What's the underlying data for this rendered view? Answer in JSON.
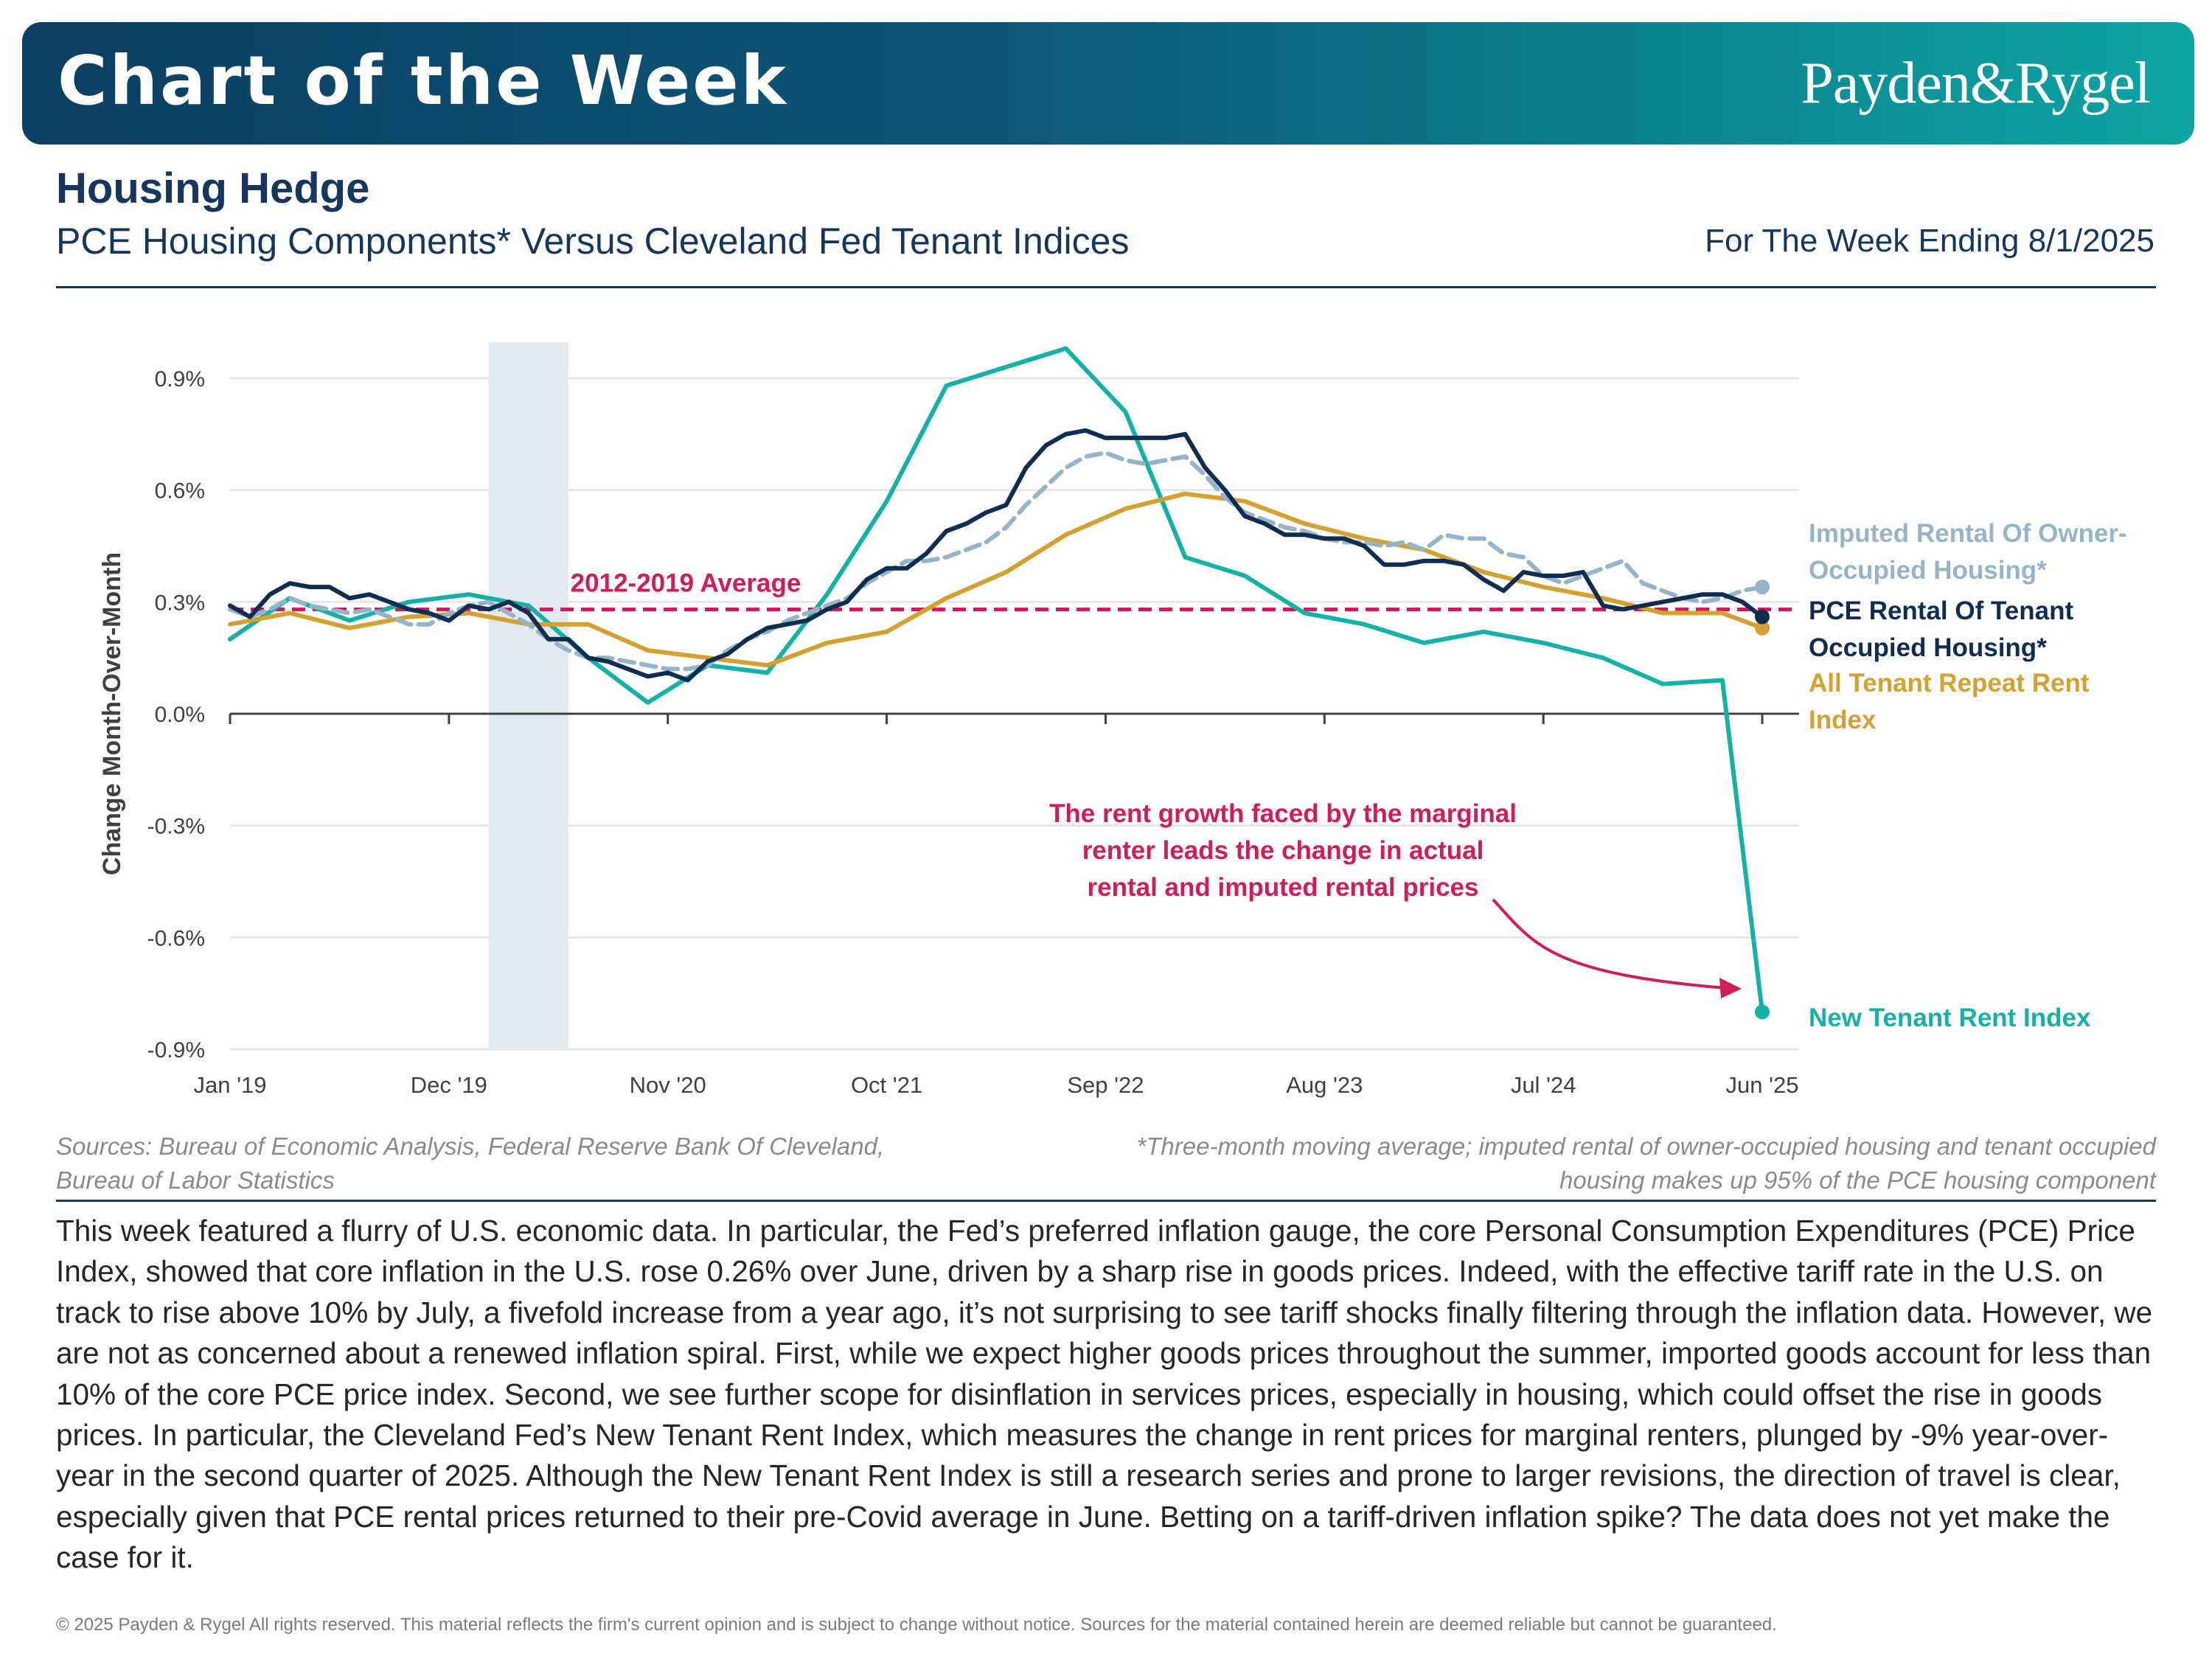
{
  "header": {
    "banner_title": "Chart of the Week",
    "brand": "Payden&Rygel",
    "headline": "Housing Hedge",
    "subtitle": "PCE Housing Components* Versus Cleveland Fed Tenant Indices",
    "week": "For The Week Ending 8/1/2025"
  },
  "colors": {
    "banner_dark": "#0c3f63",
    "banner_light": "#0ea5a3",
    "pce_tenant": "#0f2d52",
    "imputed_owner": "#96b4c8",
    "all_tenant": "#d4a030",
    "new_tenant": "#14b2a6",
    "average": "#d01c5b",
    "recession_shade": "#e1eaf0"
  },
  "chart_data": {
    "type": "line",
    "ylabel": "Change Month-Over-Month",
    "xlabel": "",
    "ylim": [
      -0.9,
      0.9
    ],
    "yticks": [
      0.9,
      0.6,
      0.3,
      0.0,
      -0.3,
      -0.6,
      -0.9
    ],
    "ytick_labels": [
      "0.9%",
      "0.6%",
      "0.3%",
      "0.0%",
      "-0.3%",
      "-0.6%",
      "-0.9%"
    ],
    "xticks": [
      "2019-01",
      "2019-12",
      "2020-11",
      "2021-10",
      "2022-09",
      "2023-08",
      "2024-07",
      "2025-06"
    ],
    "xtick_labels": [
      "Jan '19",
      "Dec '19",
      "Nov '20",
      "Oct '21",
      "Sep '22",
      "Aug '23",
      "Jul '24",
      "Jun '25"
    ],
    "shaded_period": [
      "2020-02",
      "2020-06"
    ],
    "grid": "horizontal",
    "reference_line": {
      "label": "2012-2019 Average",
      "value": 0.28
    },
    "annotation": "The rent growth faced by the marginal renter leads the change in actual rental and imputed rental prices",
    "series": [
      {
        "name": "Imputed Rental Of Owner-Occupied Housing*",
        "name_lines": [
          "Imputed Rental Of Owner-",
          "Occupied Housing*"
        ],
        "style": "dashed",
        "color": "#96b4c8",
        "points": [
          [
            "2019-01",
            0.28
          ],
          [
            "2019-02",
            0.26
          ],
          [
            "2019-03",
            0.28
          ],
          [
            "2019-04",
            0.31
          ],
          [
            "2019-05",
            0.29
          ],
          [
            "2019-06",
            0.28
          ],
          [
            "2019-07",
            0.27
          ],
          [
            "2019-08",
            0.28
          ],
          [
            "2019-09",
            0.26
          ],
          [
            "2019-10",
            0.24
          ],
          [
            "2019-11",
            0.24
          ],
          [
            "2019-12",
            0.27
          ],
          [
            "2020-01",
            0.29
          ],
          [
            "2020-02",
            0.3
          ],
          [
            "2020-03",
            0.27
          ],
          [
            "2020-04",
            0.24
          ],
          [
            "2020-05",
            0.2
          ],
          [
            "2020-06",
            0.17
          ],
          [
            "2020-07",
            0.15
          ],
          [
            "2020-08",
            0.15
          ],
          [
            "2020-09",
            0.14
          ],
          [
            "2020-10",
            0.13
          ],
          [
            "2020-11",
            0.12
          ],
          [
            "2020-12",
            0.12
          ],
          [
            "2021-01",
            0.13
          ],
          [
            "2021-02",
            0.17
          ],
          [
            "2021-03",
            0.2
          ],
          [
            "2021-04",
            0.22
          ],
          [
            "2021-05",
            0.25
          ],
          [
            "2021-06",
            0.27
          ],
          [
            "2021-07",
            0.29
          ],
          [
            "2021-08",
            0.31
          ],
          [
            "2021-09",
            0.35
          ],
          [
            "2021-10",
            0.38
          ],
          [
            "2021-11",
            0.41
          ],
          [
            "2021-12",
            0.41
          ],
          [
            "2022-01",
            0.42
          ],
          [
            "2022-02",
            0.44
          ],
          [
            "2022-03",
            0.46
          ],
          [
            "2022-04",
            0.5
          ],
          [
            "2022-05",
            0.56
          ],
          [
            "2022-06",
            0.61
          ],
          [
            "2022-07",
            0.66
          ],
          [
            "2022-08",
            0.69
          ],
          [
            "2022-09",
            0.7
          ],
          [
            "2022-10",
            0.68
          ],
          [
            "2022-11",
            0.67
          ],
          [
            "2022-12",
            0.68
          ],
          [
            "2023-01",
            0.69
          ],
          [
            "2023-02",
            0.64
          ],
          [
            "2023-03",
            0.58
          ],
          [
            "2023-04",
            0.54
          ],
          [
            "2023-05",
            0.52
          ],
          [
            "2023-06",
            0.5
          ],
          [
            "2023-07",
            0.49
          ],
          [
            "2023-08",
            0.47
          ],
          [
            "2023-09",
            0.46
          ],
          [
            "2023-10",
            0.46
          ],
          [
            "2023-11",
            0.45
          ],
          [
            "2023-12",
            0.46
          ],
          [
            "2024-01",
            0.44
          ],
          [
            "2024-02",
            0.48
          ],
          [
            "2024-03",
            0.47
          ],
          [
            "2024-04",
            0.47
          ],
          [
            "2024-05",
            0.43
          ],
          [
            "2024-06",
            0.42
          ],
          [
            "2024-07",
            0.37
          ],
          [
            "2024-08",
            0.35
          ],
          [
            "2024-09",
            0.37
          ],
          [
            "2024-10",
            0.39
          ],
          [
            "2024-11",
            0.41
          ],
          [
            "2024-12",
            0.35
          ],
          [
            "2025-01",
            0.33
          ],
          [
            "2025-02",
            0.31
          ],
          [
            "2025-03",
            0.3
          ],
          [
            "2025-04",
            0.31
          ],
          [
            "2025-05",
            0.33
          ],
          [
            "2025-06",
            0.34
          ]
        ]
      },
      {
        "name": "PCE Rental Of Tenant Occupied Housing*",
        "name_lines": [
          "PCE Rental Of Tenant",
          "Occupied Housing*"
        ],
        "style": "solid",
        "color": "#0f2d52",
        "points": [
          [
            "2019-01",
            0.29
          ],
          [
            "2019-02",
            0.26
          ],
          [
            "2019-03",
            0.32
          ],
          [
            "2019-04",
            0.35
          ],
          [
            "2019-05",
            0.34
          ],
          [
            "2019-06",
            0.34
          ],
          [
            "2019-07",
            0.31
          ],
          [
            "2019-08",
            0.32
          ],
          [
            "2019-09",
            0.3
          ],
          [
            "2019-10",
            0.28
          ],
          [
            "2019-11",
            0.27
          ],
          [
            "2019-12",
            0.25
          ],
          [
            "2020-01",
            0.29
          ],
          [
            "2020-02",
            0.28
          ],
          [
            "2020-03",
            0.3
          ],
          [
            "2020-04",
            0.27
          ],
          [
            "2020-05",
            0.2
          ],
          [
            "2020-06",
            0.2
          ],
          [
            "2020-07",
            0.15
          ],
          [
            "2020-08",
            0.14
          ],
          [
            "2020-09",
            0.12
          ],
          [
            "2020-10",
            0.1
          ],
          [
            "2020-11",
            0.11
          ],
          [
            "2020-12",
            0.09
          ],
          [
            "2021-01",
            0.14
          ],
          [
            "2021-02",
            0.16
          ],
          [
            "2021-03",
            0.2
          ],
          [
            "2021-04",
            0.23
          ],
          [
            "2021-05",
            0.24
          ],
          [
            "2021-06",
            0.25
          ],
          [
            "2021-07",
            0.28
          ],
          [
            "2021-08",
            0.3
          ],
          [
            "2021-09",
            0.36
          ],
          [
            "2021-10",
            0.39
          ],
          [
            "2021-11",
            0.39
          ],
          [
            "2021-12",
            0.43
          ],
          [
            "2022-01",
            0.49
          ],
          [
            "2022-02",
            0.51
          ],
          [
            "2022-03",
            0.54
          ],
          [
            "2022-04",
            0.56
          ],
          [
            "2022-05",
            0.66
          ],
          [
            "2022-06",
            0.72
          ],
          [
            "2022-07",
            0.75
          ],
          [
            "2022-08",
            0.76
          ],
          [
            "2022-09",
            0.74
          ],
          [
            "2022-10",
            0.74
          ],
          [
            "2022-11",
            0.74
          ],
          [
            "2022-12",
            0.74
          ],
          [
            "2023-01",
            0.75
          ],
          [
            "2023-02",
            0.66
          ],
          [
            "2023-03",
            0.6
          ],
          [
            "2023-04",
            0.53
          ],
          [
            "2023-05",
            0.51
          ],
          [
            "2023-06",
            0.48
          ],
          [
            "2023-07",
            0.48
          ],
          [
            "2023-08",
            0.47
          ],
          [
            "2023-09",
            0.47
          ],
          [
            "2023-10",
            0.45
          ],
          [
            "2023-11",
            0.4
          ],
          [
            "2023-12",
            0.4
          ],
          [
            "2024-01",
            0.41
          ],
          [
            "2024-02",
            0.41
          ],
          [
            "2024-03",
            0.4
          ],
          [
            "2024-04",
            0.36
          ],
          [
            "2024-05",
            0.33
          ],
          [
            "2024-06",
            0.38
          ],
          [
            "2024-07",
            0.37
          ],
          [
            "2024-08",
            0.37
          ],
          [
            "2024-09",
            0.38
          ],
          [
            "2024-10",
            0.29
          ],
          [
            "2024-11",
            0.28
          ],
          [
            "2024-12",
            0.29
          ],
          [
            "2025-01",
            0.3
          ],
          [
            "2025-02",
            0.31
          ],
          [
            "2025-03",
            0.32
          ],
          [
            "2025-04",
            0.32
          ],
          [
            "2025-05",
            0.3
          ],
          [
            "2025-06",
            0.26
          ]
        ]
      },
      {
        "name": "All Tenant Repeat Rent Index",
        "name_lines": [
          "All Tenant Repeat Rent",
          "Index"
        ],
        "style": "solid",
        "color": "#d4a030",
        "points": [
          [
            "2019-01",
            0.24
          ],
          [
            "2019-04",
            0.27
          ],
          [
            "2019-07",
            0.23
          ],
          [
            "2019-10",
            0.26
          ],
          [
            "2020-01",
            0.27
          ],
          [
            "2020-04",
            0.24
          ],
          [
            "2020-07",
            0.24
          ],
          [
            "2020-10",
            0.17
          ],
          [
            "2021-01",
            0.15
          ],
          [
            "2021-04",
            0.13
          ],
          [
            "2021-07",
            0.19
          ],
          [
            "2021-10",
            0.22
          ],
          [
            "2022-01",
            0.31
          ],
          [
            "2022-04",
            0.38
          ],
          [
            "2022-07",
            0.48
          ],
          [
            "2022-10",
            0.55
          ],
          [
            "2023-01",
            0.59
          ],
          [
            "2023-04",
            0.57
          ],
          [
            "2023-07",
            0.51
          ],
          [
            "2023-10",
            0.47
          ],
          [
            "2024-01",
            0.44
          ],
          [
            "2024-04",
            0.38
          ],
          [
            "2024-07",
            0.34
          ],
          [
            "2024-10",
            0.31
          ],
          [
            "2025-01",
            0.27
          ],
          [
            "2025-04",
            0.27
          ],
          [
            "2025-06",
            0.23
          ]
        ]
      },
      {
        "name": "New Tenant Rent Index",
        "name_lines": [
          "New Tenant Rent Index"
        ],
        "style": "solid",
        "color": "#14b2a6",
        "points": [
          [
            "2019-01",
            0.2
          ],
          [
            "2019-04",
            0.31
          ],
          [
            "2019-07",
            0.25
          ],
          [
            "2019-10",
            0.3
          ],
          [
            "2020-01",
            0.32
          ],
          [
            "2020-04",
            0.29
          ],
          [
            "2020-07",
            0.15
          ],
          [
            "2020-10",
            0.03
          ],
          [
            "2021-01",
            0.13
          ],
          [
            "2021-04",
            0.11
          ],
          [
            "2021-07",
            0.32
          ],
          [
            "2021-10",
            0.57
          ],
          [
            "2022-01",
            0.88
          ],
          [
            "2022-04",
            0.93
          ],
          [
            "2022-07",
            0.98
          ],
          [
            "2022-10",
            0.81
          ],
          [
            "2023-01",
            0.42
          ],
          [
            "2023-04",
            0.37
          ],
          [
            "2023-07",
            0.27
          ],
          [
            "2023-10",
            0.24
          ],
          [
            "2024-01",
            0.19
          ],
          [
            "2024-04",
            0.22
          ],
          [
            "2024-07",
            0.19
          ],
          [
            "2024-10",
            0.15
          ],
          [
            "2025-01",
            0.08
          ],
          [
            "2025-04",
            0.09
          ],
          [
            "2025-06",
            -0.8
          ]
        ]
      }
    ]
  },
  "sources": "Sources: Bureau of Economic Analysis, Federal Reserve Bank Of Cleveland, Bureau of Labor Statistics",
  "footnote": "*Three-month moving average; imputed rental of owner-occupied housing and tenant occupied housing makes up 95% of the PCE housing component",
  "body": "This week featured a flurry of U.S. economic data. In particular, the Fed’s preferred inflation gauge, the core Personal Consumption Expenditures (PCE) Price Index, showed that core inflation in the U.S. rose 0.26% over June, driven by a sharp rise in goods prices. Indeed, with the effective tariff rate in the U.S. on track to rise above 10% by July, a fivefold increase from a year ago, it’s not surprising to see tariff shocks finally filtering through the inflation data. However, we are not as concerned about a renewed inflation spiral. First, while we expect higher goods prices throughout the summer, imported goods account for less than 10% of the core PCE price index. Second, we see further scope for disinflation in services prices, especially in housing, which could offset the rise in goods prices. In particular, the Cleveland Fed’s New Tenant Rent Index, which measures the change in rent prices for marginal renters, plunged by -9% year-over-year in the second quarter of 2025. Although the New Tenant Rent Index is still a research series and prone to larger revisions, the direction of travel is clear, especially given that PCE rental prices returned to their pre-Covid average in June. Betting on a tariff-driven inflation spike? The data does not yet make the case for it.",
  "footer": "© 2025 Payden & Rygel All rights reserved. This material reflects the firm's current opinion and is subject to change without notice. Sources for the material contained herein are deemed reliable but cannot be guaranteed."
}
